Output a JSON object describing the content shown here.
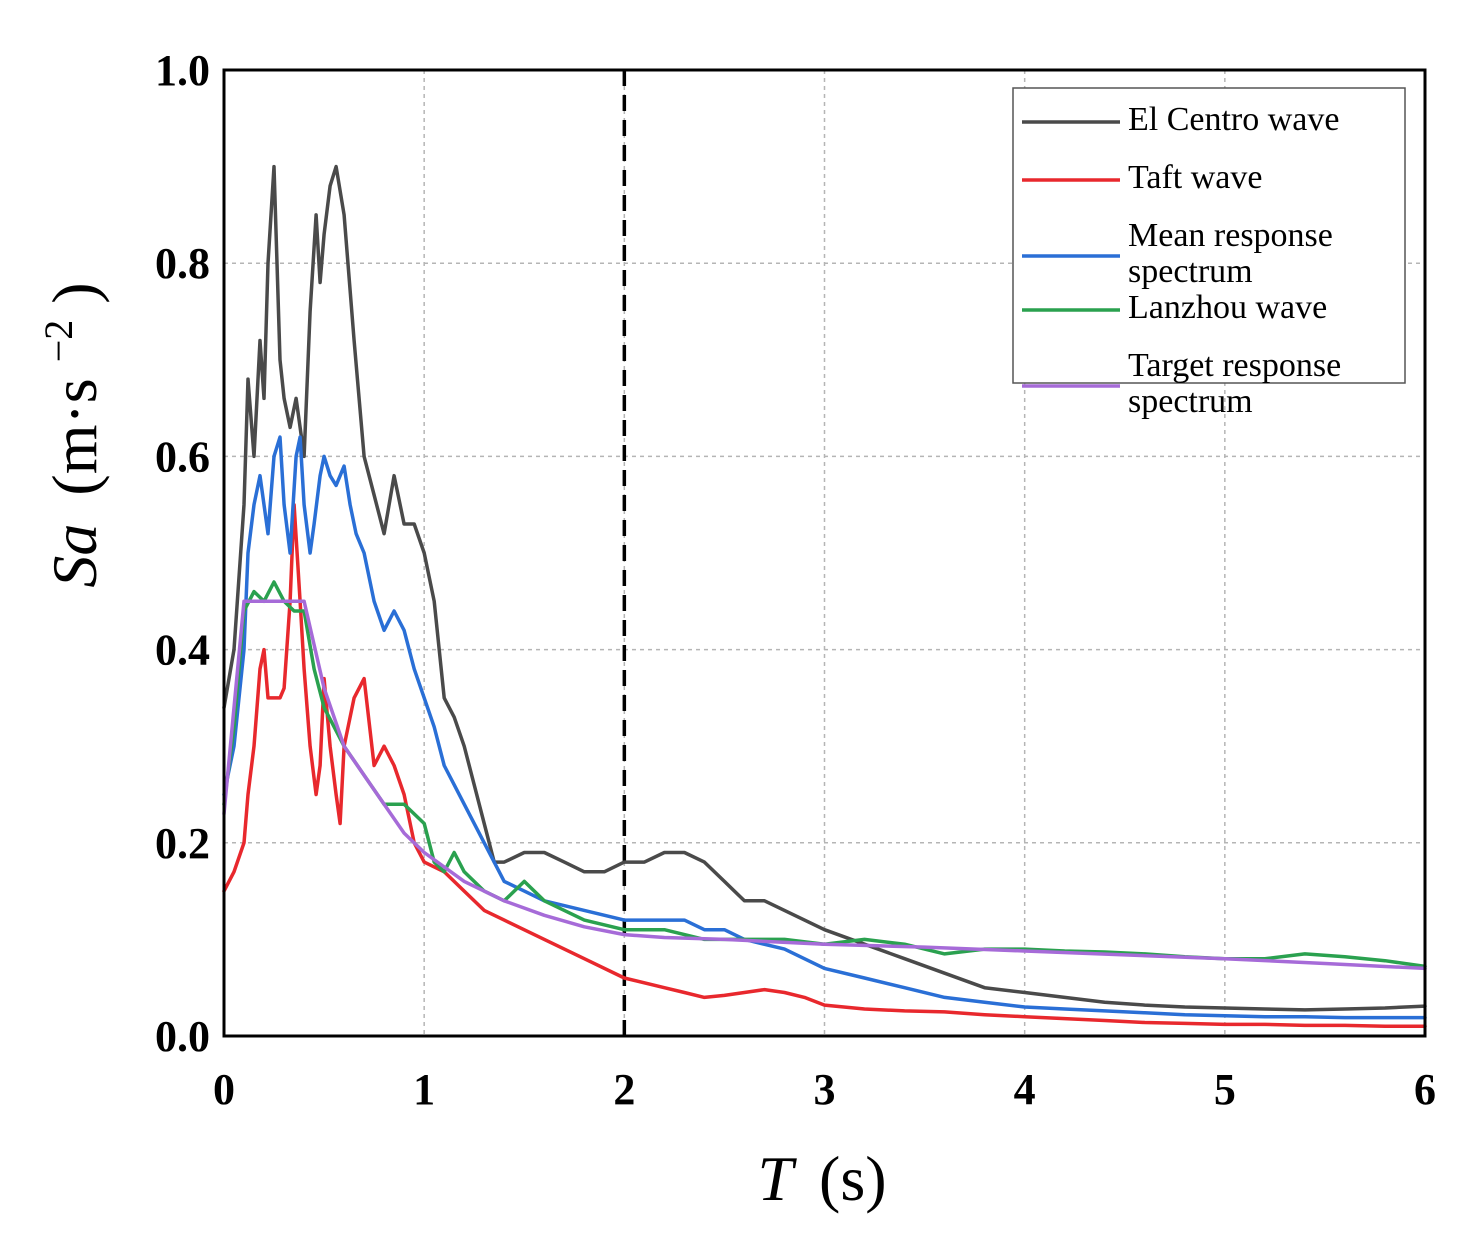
{
  "chart_data": {
    "type": "line",
    "title": "",
    "xlabel": "T",
    "xlabel_unit": "(s)",
    "ylabel": "Sa",
    "ylabel_unit": "(m·s",
    "ylabel_unit_exp": "−2",
    "ylabel_unit_close": ")",
    "xlim": [
      0,
      6
    ],
    "ylim": [
      0,
      1.0
    ],
    "x_ticks": [
      0,
      1,
      2,
      3,
      4,
      5,
      6
    ],
    "x_tick_labels": [
      "0",
      "1",
      "2",
      "3",
      "4",
      "5",
      "6"
    ],
    "y_ticks": [
      0,
      0.2,
      0.4,
      0.6,
      0.8,
      1.0
    ],
    "y_tick_labels": [
      "0.0",
      "0.2",
      "0.4",
      "0.6",
      "0.8",
      "1.0"
    ],
    "grid": true,
    "legend_position": "top-right",
    "reference_line": {
      "x": 2,
      "style": "dashed",
      "color": "#000000"
    },
    "series": [
      {
        "name": "El Centro wave",
        "legend_lines": [
          "El Centro wave"
        ],
        "color": "#4a4a4a",
        "x": [
          0,
          0.05,
          0.1,
          0.12,
          0.15,
          0.18,
          0.2,
          0.22,
          0.25,
          0.28,
          0.3,
          0.33,
          0.36,
          0.4,
          0.43,
          0.46,
          0.48,
          0.5,
          0.53,
          0.56,
          0.6,
          0.65,
          0.7,
          0.75,
          0.8,
          0.85,
          0.9,
          0.95,
          1.0,
          1.05,
          1.1,
          1.15,
          1.2,
          1.25,
          1.3,
          1.35,
          1.4,
          1.5,
          1.6,
          1.7,
          1.8,
          1.9,
          2.0,
          2.1,
          2.2,
          2.3,
          2.4,
          2.5,
          2.6,
          2.7,
          2.8,
          2.9,
          3.0,
          3.2,
          3.4,
          3.6,
          3.8,
          4.0,
          4.2,
          4.4,
          4.6,
          4.8,
          5.0,
          5.2,
          5.4,
          5.6,
          5.8,
          6.0
        ],
        "values": [
          0.34,
          0.4,
          0.55,
          0.68,
          0.6,
          0.72,
          0.66,
          0.8,
          0.9,
          0.7,
          0.66,
          0.63,
          0.66,
          0.6,
          0.75,
          0.85,
          0.78,
          0.83,
          0.88,
          0.9,
          0.85,
          0.72,
          0.6,
          0.56,
          0.52,
          0.58,
          0.53,
          0.53,
          0.5,
          0.45,
          0.35,
          0.33,
          0.3,
          0.26,
          0.22,
          0.18,
          0.18,
          0.19,
          0.19,
          0.18,
          0.17,
          0.17,
          0.18,
          0.18,
          0.19,
          0.19,
          0.18,
          0.16,
          0.14,
          0.14,
          0.13,
          0.12,
          0.11,
          0.095,
          0.08,
          0.065,
          0.05,
          0.045,
          0.04,
          0.035,
          0.032,
          0.03,
          0.029,
          0.028,
          0.027,
          0.028,
          0.029,
          0.031
        ]
      },
      {
        "name": "Taft wave",
        "legend_lines": [
          "Taft wave"
        ],
        "color": "#e8282d",
        "x": [
          0,
          0.05,
          0.1,
          0.12,
          0.15,
          0.18,
          0.2,
          0.22,
          0.25,
          0.28,
          0.3,
          0.33,
          0.35,
          0.38,
          0.4,
          0.43,
          0.46,
          0.48,
          0.5,
          0.53,
          0.56,
          0.58,
          0.6,
          0.65,
          0.7,
          0.75,
          0.8,
          0.85,
          0.9,
          0.95,
          1.0,
          1.1,
          1.2,
          1.3,
          1.4,
          1.6,
          1.8,
          2.0,
          2.2,
          2.3,
          2.4,
          2.5,
          2.6,
          2.7,
          2.8,
          2.9,
          3.0,
          3.2,
          3.4,
          3.6,
          3.8,
          4.0,
          4.2,
          4.4,
          4.6,
          4.8,
          5.0,
          5.2,
          5.4,
          5.6,
          5.8,
          6.0
        ],
        "values": [
          0.15,
          0.17,
          0.2,
          0.25,
          0.3,
          0.38,
          0.4,
          0.35,
          0.35,
          0.35,
          0.36,
          0.45,
          0.55,
          0.45,
          0.38,
          0.3,
          0.25,
          0.28,
          0.37,
          0.3,
          0.25,
          0.22,
          0.3,
          0.35,
          0.37,
          0.28,
          0.3,
          0.28,
          0.25,
          0.2,
          0.18,
          0.17,
          0.15,
          0.13,
          0.12,
          0.1,
          0.08,
          0.06,
          0.05,
          0.045,
          0.04,
          0.042,
          0.045,
          0.048,
          0.045,
          0.04,
          0.032,
          0.028,
          0.026,
          0.025,
          0.022,
          0.02,
          0.018,
          0.016,
          0.014,
          0.013,
          0.012,
          0.012,
          0.011,
          0.011,
          0.01,
          0.01
        ]
      },
      {
        "name": "Mean response spectrum",
        "legend_lines": [
          "Mean response",
          "spectrum"
        ],
        "color": "#2a6fd6",
        "x": [
          0,
          0.05,
          0.1,
          0.12,
          0.15,
          0.18,
          0.2,
          0.22,
          0.25,
          0.28,
          0.3,
          0.33,
          0.36,
          0.38,
          0.4,
          0.43,
          0.45,
          0.48,
          0.5,
          0.53,
          0.56,
          0.6,
          0.63,
          0.66,
          0.7,
          0.75,
          0.8,
          0.85,
          0.9,
          0.95,
          1.0,
          1.05,
          1.1,
          1.15,
          1.2,
          1.3,
          1.4,
          1.5,
          1.6,
          1.8,
          2.0,
          2.2,
          2.3,
          2.4,
          2.5,
          2.6,
          2.8,
          3.0,
          3.2,
          3.4,
          3.6,
          3.8,
          4.0,
          4.2,
          4.4,
          4.6,
          4.8,
          5.0,
          5.2,
          5.4,
          5.6,
          5.8,
          6.0
        ],
        "values": [
          0.25,
          0.3,
          0.4,
          0.5,
          0.55,
          0.58,
          0.55,
          0.52,
          0.6,
          0.62,
          0.55,
          0.5,
          0.6,
          0.62,
          0.55,
          0.5,
          0.53,
          0.58,
          0.6,
          0.58,
          0.57,
          0.59,
          0.55,
          0.52,
          0.5,
          0.45,
          0.42,
          0.44,
          0.42,
          0.38,
          0.35,
          0.32,
          0.28,
          0.26,
          0.24,
          0.2,
          0.16,
          0.15,
          0.14,
          0.13,
          0.12,
          0.12,
          0.12,
          0.11,
          0.11,
          0.1,
          0.09,
          0.07,
          0.06,
          0.05,
          0.04,
          0.035,
          0.03,
          0.028,
          0.026,
          0.024,
          0.022,
          0.021,
          0.02,
          0.02,
          0.019,
          0.019,
          0.019
        ]
      },
      {
        "name": "Lanzhou wave",
        "legend_lines": [
          "Lanzhou wave"
        ],
        "color": "#2aa14f",
        "x": [
          0,
          0.05,
          0.1,
          0.15,
          0.2,
          0.25,
          0.3,
          0.35,
          0.4,
          0.45,
          0.5,
          0.6,
          0.7,
          0.8,
          0.9,
          1.0,
          1.05,
          1.1,
          1.15,
          1.2,
          1.3,
          1.4,
          1.5,
          1.6,
          1.7,
          1.8,
          2.0,
          2.2,
          2.4,
          2.5,
          2.6,
          2.8,
          3.0,
          3.2,
          3.4,
          3.6,
          3.8,
          4.0,
          4.2,
          4.4,
          4.6,
          4.8,
          5.0,
          5.2,
          5.4,
          5.6,
          5.8,
          6.0
        ],
        "values": [
          0.24,
          0.32,
          0.44,
          0.46,
          0.45,
          0.47,
          0.45,
          0.44,
          0.44,
          0.38,
          0.34,
          0.3,
          0.27,
          0.24,
          0.24,
          0.22,
          0.18,
          0.17,
          0.19,
          0.17,
          0.15,
          0.14,
          0.16,
          0.14,
          0.13,
          0.12,
          0.11,
          0.11,
          0.1,
          0.1,
          0.1,
          0.1,
          0.095,
          0.1,
          0.095,
          0.085,
          0.09,
          0.09,
          0.088,
          0.087,
          0.085,
          0.082,
          0.08,
          0.08,
          0.085,
          0.082,
          0.078,
          0.072
        ]
      },
      {
        "name": "Target response spectrum",
        "legend_lines": [
          "Target response",
          "spectrum"
        ],
        "color": "#a66bd8",
        "x": [
          0,
          0.1,
          0.4,
          0.5,
          0.6,
          0.7,
          0.8,
          0.9,
          1.0,
          1.2,
          1.4,
          1.6,
          1.8,
          2.0,
          2.2,
          2.5,
          3.0,
          3.5,
          4.0,
          4.5,
          5.0,
          5.5,
          6.0
        ],
        "values": [
          0.23,
          0.45,
          0.45,
          0.36,
          0.3,
          0.27,
          0.24,
          0.21,
          0.19,
          0.16,
          0.14,
          0.125,
          0.113,
          0.105,
          0.102,
          0.1,
          0.095,
          0.092,
          0.088,
          0.084,
          0.08,
          0.075,
          0.07
        ]
      }
    ]
  }
}
